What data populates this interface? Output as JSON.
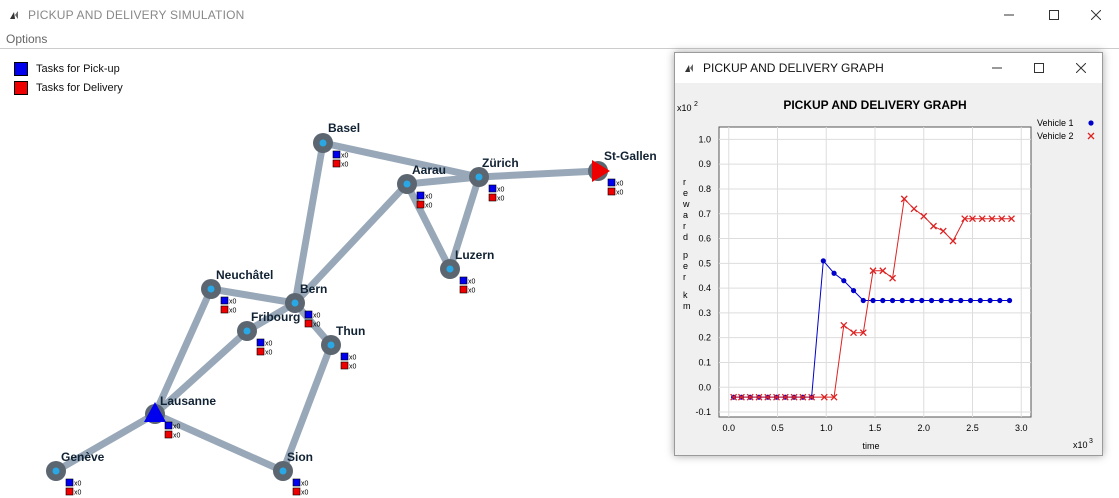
{
  "main_window": {
    "title": "PICKUP AND DELIVERY SIMULATION",
    "menu": [
      "Options"
    ]
  },
  "legend": [
    {
      "label": "Tasks for Pick-up",
      "color": "#0000ee"
    },
    {
      "label": "Tasks for Delivery",
      "color": "#ee0000"
    }
  ],
  "network": {
    "road_color": "#98a8b8",
    "city_color": "#5c6670",
    "city_dot_color": "#2aa8e6",
    "cities": [
      {
        "name": "Basel",
        "pickup": "x0",
        "delivery": "x0"
      },
      {
        "name": "Aarau",
        "pickup": "x0",
        "delivery": "x0"
      },
      {
        "name": "Zürich",
        "pickup": "x0",
        "delivery": "x0"
      },
      {
        "name": "St-Gallen",
        "pickup": "x0",
        "delivery": "x0"
      },
      {
        "name": "Luzern",
        "pickup": "x0",
        "delivery": "x0"
      },
      {
        "name": "Neuchâtel",
        "pickup": "x0",
        "delivery": "x0"
      },
      {
        "name": "Bern",
        "pickup": "x0",
        "delivery": "x0"
      },
      {
        "name": "Fribourg",
        "pickup": "x0",
        "delivery": "x0"
      },
      {
        "name": "Thun",
        "pickup": "x0",
        "delivery": "x0"
      },
      {
        "name": "Lausanne",
        "pickup": "x0",
        "delivery": "x0"
      },
      {
        "name": "Genève",
        "pickup": "x0",
        "delivery": "x0"
      },
      {
        "name": "Sion",
        "pickup": "x0",
        "delivery": "x0"
      }
    ],
    "vehicles": [
      {
        "city": "Lausanne",
        "color": "#0000ee",
        "icon": "triangle-up-icon"
      },
      {
        "city": "St-Gallen",
        "color": "#ee0000",
        "icon": "triangle-right-icon"
      }
    ]
  },
  "graph_window": {
    "title": "PICKUP AND DELIVERY GRAPH"
  },
  "chart_data": {
    "type": "line",
    "title": "PICKUP AND DELIVERY GRAPH",
    "xlabel": "time",
    "ylabel": "reward per km",
    "x_exponent_label": "x10",
    "x_exponent": "3",
    "y_exponent_label": "x10",
    "y_exponent": "2",
    "xlim": [
      -0.1,
      3.1
    ],
    "ylim": [
      -0.12,
      1.05
    ],
    "x_ticks": [
      0.0,
      0.5,
      1.0,
      1.5,
      2.0,
      2.5,
      3.0
    ],
    "x_tick_labels": [
      "0.0",
      "0.5",
      "1.0",
      "1.5",
      "2.0",
      "2.5",
      "3.0"
    ],
    "y_ticks": [
      -0.1,
      0.0,
      0.1,
      0.2,
      0.3,
      0.4,
      0.5,
      0.6,
      0.7,
      0.8,
      0.9,
      1.0
    ],
    "y_tick_labels": [
      "-0.1",
      "0.0",
      "0.1",
      "0.2",
      "0.3",
      "0.4",
      "0.5",
      "0.6",
      "0.7",
      "0.8",
      "0.9",
      "1.0"
    ],
    "grid": true,
    "legend_position": "top-right",
    "series": [
      {
        "name": "Vehicle 1",
        "color": "#0000cc",
        "marker": "dot",
        "x": [
          0.05,
          0.13,
          0.22,
          0.31,
          0.4,
          0.49,
          0.58,
          0.67,
          0.76,
          0.85,
          0.97,
          1.08,
          1.18,
          1.28,
          1.38,
          1.48,
          1.58,
          1.68,
          1.78,
          1.88,
          1.98,
          2.08,
          2.18,
          2.28,
          2.38,
          2.48,
          2.58,
          2.68,
          2.78,
          2.88
        ],
        "y": [
          -0.04,
          -0.04,
          -0.04,
          -0.04,
          -0.04,
          -0.04,
          -0.04,
          -0.04,
          -0.04,
          -0.04,
          0.51,
          0.46,
          0.43,
          0.39,
          0.35,
          0.35,
          0.35,
          0.35,
          0.35,
          0.35,
          0.35,
          0.35,
          0.35,
          0.35,
          0.35,
          0.35,
          0.35,
          0.35,
          0.35,
          0.35
        ]
      },
      {
        "name": "Vehicle 2",
        "color": "#dd2222",
        "marker": "x",
        "x": [
          0.05,
          0.13,
          0.22,
          0.31,
          0.4,
          0.49,
          0.58,
          0.67,
          0.76,
          0.85,
          0.98,
          1.08,
          1.18,
          1.28,
          1.38,
          1.48,
          1.58,
          1.68,
          1.8,
          1.9,
          2.0,
          2.1,
          2.2,
          2.3,
          2.42,
          2.5,
          2.6,
          2.7,
          2.8,
          2.9
        ],
        "y": [
          -0.04,
          -0.04,
          -0.04,
          -0.04,
          -0.04,
          -0.04,
          -0.04,
          -0.04,
          -0.04,
          -0.04,
          -0.04,
          -0.04,
          0.25,
          0.22,
          0.22,
          0.47,
          0.47,
          0.44,
          0.76,
          0.72,
          0.69,
          0.65,
          0.63,
          0.59,
          0.68,
          0.68,
          0.68,
          0.68,
          0.68,
          0.68
        ]
      }
    ]
  }
}
